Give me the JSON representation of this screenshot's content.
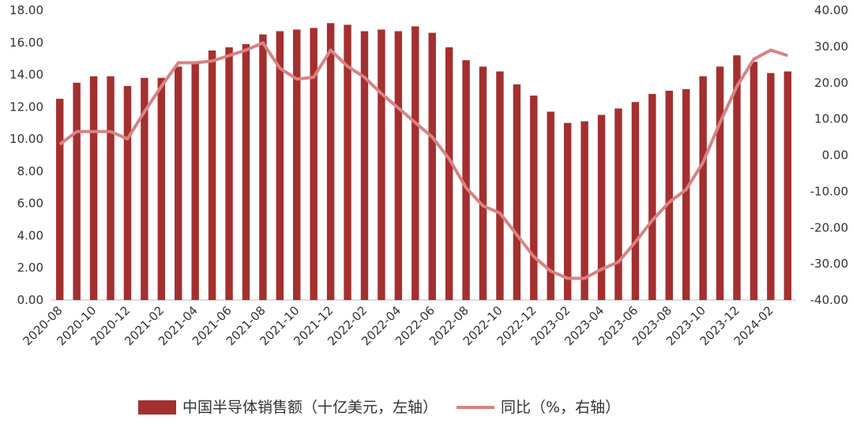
{
  "chart_data": {
    "type": "bar-line",
    "categories": [
      "2020-08",
      null,
      "2020-10",
      null,
      "2020-12",
      null,
      "2021-02",
      null,
      "2021-04",
      null,
      "2021-06",
      null,
      "2021-08",
      null,
      "2021-10",
      null,
      "2021-12",
      null,
      "2022-02",
      null,
      "2022-04",
      null,
      "2022-06",
      null,
      "2022-08",
      null,
      "2022-10",
      null,
      "2022-12",
      null,
      "2023-02",
      null,
      "2023-04",
      null,
      "2023-06",
      null,
      "2023-08",
      null,
      "2023-10",
      null,
      "2023-12",
      null,
      "2024-02",
      null
    ],
    "series": [
      {
        "name": "中国半导体销售额（十亿美元，左轴）",
        "type": "bar",
        "color": "#a3302f",
        "values": [
          12.5,
          13.5,
          13.9,
          13.9,
          13.3,
          13.8,
          13.8,
          14.5,
          14.8,
          15.5,
          15.7,
          15.9,
          16.5,
          16.7,
          16.8,
          16.9,
          17.2,
          17.1,
          16.7,
          16.8,
          16.7,
          17.0,
          16.6,
          15.7,
          14.9,
          14.5,
          14.2,
          13.4,
          12.7,
          11.7,
          11.0,
          11.1,
          11.5,
          11.9,
          12.3,
          12.8,
          13.0,
          13.1,
          13.9,
          14.5,
          15.2,
          14.8,
          14.1,
          14.2
        ]
      },
      {
        "name": "同比（%，右轴）",
        "type": "line",
        "axis": "y2",
        "color": "#d98282",
        "values": [
          3,
          6.5,
          6.5,
          6.5,
          4.5,
          12,
          19,
          25.5,
          25.5,
          26,
          27.5,
          29,
          31,
          24,
          21,
          21.5,
          29,
          24.5,
          21.5,
          17,
          13,
          9,
          5,
          -1,
          -9,
          -14,
          -16,
          -22,
          -28,
          -32,
          -34,
          -34,
          -31.5,
          -29.5,
          -24,
          -18,
          -13,
          -9.5,
          -2,
          9,
          19,
          26.5,
          29,
          27.5
        ]
      }
    ],
    "ylim": [
      0,
      18
    ],
    "yticks": [
      {
        "value": 0,
        "label": "0.00"
      },
      {
        "value": 2,
        "label": "2.00"
      },
      {
        "value": 4,
        "label": "4.00"
      },
      {
        "value": 6,
        "label": "6.00"
      },
      {
        "value": 8,
        "label": "8.00"
      },
      {
        "value": 10,
        "label": "10.00"
      },
      {
        "value": 12,
        "label": "12.00"
      },
      {
        "value": 14,
        "label": "14.00"
      },
      {
        "value": 16,
        "label": "16.00"
      },
      {
        "value": 18,
        "label": "18.00"
      }
    ],
    "y2lim": [
      -40,
      40
    ],
    "y2ticks": [
      {
        "value": -40,
        "label": "-40.00"
      },
      {
        "value": -30,
        "label": "-30.00"
      },
      {
        "value": -20,
        "label": "-20.00"
      },
      {
        "value": -10,
        "label": "-10.00"
      },
      {
        "value": 0,
        "label": "0.00"
      },
      {
        "value": 10,
        "label": "10.00"
      },
      {
        "value": 20,
        "label": "20.00"
      },
      {
        "value": 30,
        "label": "30.00"
      },
      {
        "value": 40,
        "label": "40.00"
      }
    ],
    "legend": "bottom"
  }
}
